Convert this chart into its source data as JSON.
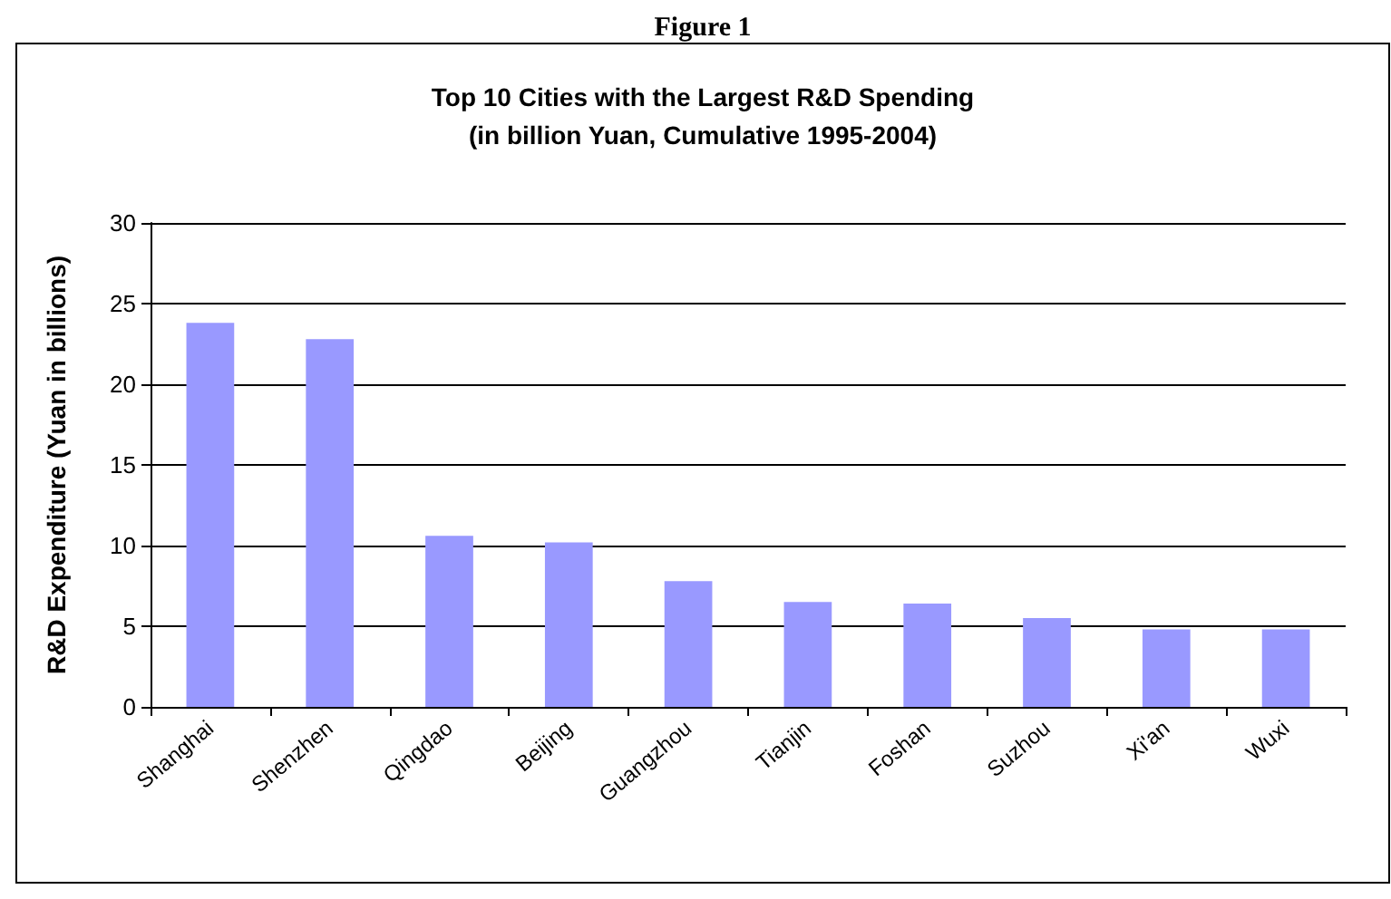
{
  "chart_data": {
    "type": "bar",
    "title": "Top 10 Cities with the Largest R&D Spending\n(in billion Yuan, Cumulative 1995-2004)",
    "annotations": [
      "Figure 1"
    ],
    "ylabel": "R&D Expenditure (Yuan in billions)",
    "categories": [
      "Shanghai",
      "Shenzhen",
      "Qingdao",
      "Beijing",
      "Guangzhou",
      "Tianjin",
      "Foshan",
      "Suzhou",
      "Xi'an",
      "Wuxi"
    ],
    "values": [
      23.8,
      22.8,
      10.6,
      10.2,
      7.8,
      6.5,
      6.4,
      5.5,
      4.8,
      4.8
    ],
    "color": "#9999ff",
    "ylim": [
      0,
      30
    ],
    "yticks": [
      0,
      5,
      10,
      15,
      20,
      25,
      30
    ],
    "grid": "y"
  }
}
